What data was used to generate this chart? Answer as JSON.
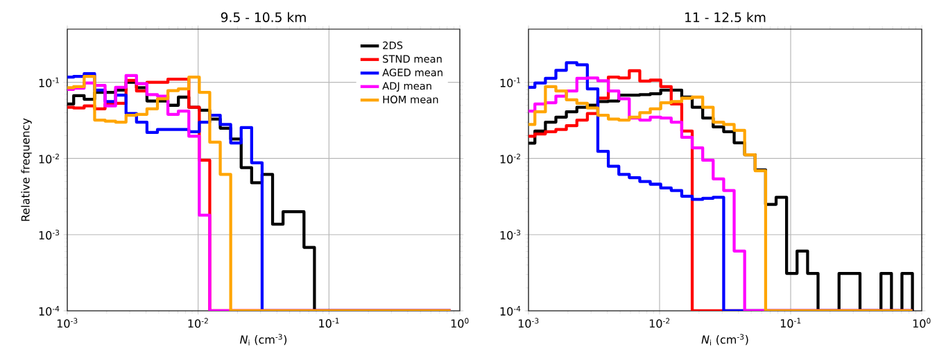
{
  "chart_data": [
    {
      "type": "histogram",
      "title": "9.5 - 10.5 km",
      "xlabel": "*N*$_{i}$ (cm$^{-3}$)",
      "ylabel": "Relative frequency",
      "log": "xy",
      "grid": true,
      "legend": "top right",
      "xlim": [
        0.001,
        1
      ],
      "ylim": [
        0.0001,
        0.5
      ],
      "xticks": [
        {
          "value": 0.001,
          "label": "10$^{-3}$"
        },
        {
          "value": 0.01,
          "label": "10$^{-2}$"
        },
        {
          "value": 0.1,
          "label": "10$^{-1}$"
        },
        {
          "value": 1,
          "label": "10$^{0}$"
        }
      ],
      "yticks": [
        {
          "value": 0.0001,
          "label": "10$^{-4}$"
        },
        {
          "value": 0.001,
          "label": "10$^{-3}$"
        },
        {
          "value": 0.01,
          "label": "10$^{-2}$"
        },
        {
          "value": 0.1,
          "label": "10$^{-1}$"
        }
      ],
      "bins": [
        0.001,
        0.001119,
        0.001346,
        0.001618,
        0.001945,
        0.002339,
        0.002812,
        0.003381,
        0.004064,
        0.004887,
        0.005875,
        0.007063,
        0.008492,
        0.01021,
        0.01227,
        0.01476,
        0.01774,
        0.02133,
        0.02564,
        0.03083,
        0.03707,
        0.04457,
        0.05358,
        0.06442,
        0.07745,
        0.09311,
        0.1119,
        0.1346,
        0.1618,
        0.1945,
        0.2339,
        0.2812,
        0.3381,
        0.4064,
        0.4887,
        0.5875,
        0.7063,
        0.8492
      ],
      "series": [
        {
          "name": "2DS",
          "color": "#000000",
          "values": [
            0.052,
            0.067,
            0.06,
            0.074,
            0.074,
            0.079,
            0.1,
            0.085,
            0.057,
            0.057,
            0.05,
            0.064,
            0.047,
            0.043,
            0.033,
            0.025,
            0.018,
            0.0076,
            0.0048,
            0.0062,
            0.00137,
            0.002,
            0.002,
            0.00068,
            null,
            null,
            null,
            null,
            null,
            null,
            null,
            null,
            null,
            null,
            null,
            null,
            null
          ]
        },
        {
          "name": "STND mean",
          "color": "#ff0000",
          "values": [
            0.047,
            0.046,
            0.049,
            0.045,
            0.052,
            0.053,
            0.106,
            0.077,
            0.1,
            0.1,
            0.11,
            0.11,
            0.047,
            0.0095,
            null,
            null,
            null,
            null,
            null,
            null,
            null,
            null,
            null,
            null,
            null,
            null,
            null,
            null,
            null,
            null,
            null,
            null,
            null,
            null,
            null,
            null,
            null
          ]
        },
        {
          "name": "AGED mean",
          "color": "#0000ff",
          "values": [
            0.117,
            0.12,
            0.13,
            0.079,
            0.056,
            0.068,
            0.039,
            0.03,
            0.022,
            0.024,
            0.024,
            0.024,
            0.0225,
            0.03,
            0.037,
            0.028,
            0.016,
            0.0255,
            0.0088,
            null,
            null,
            null,
            null,
            null,
            null,
            null,
            null,
            null,
            null,
            null,
            null,
            null,
            null,
            null,
            null,
            null,
            null
          ]
        },
        {
          "name": "ADJ mean",
          "color": "#ff00ff",
          "values": [
            0.081,
            0.084,
            0.098,
            0.091,
            0.049,
            0.086,
            0.123,
            0.096,
            0.069,
            0.066,
            0.038,
            0.042,
            0.0196,
            0.0018,
            null,
            null,
            null,
            null,
            null,
            null,
            null,
            null,
            null,
            null,
            null,
            null,
            null,
            null,
            null,
            null,
            null,
            null,
            null,
            null,
            null,
            null,
            null
          ]
        },
        {
          "name": "HOM mean",
          "color": "#ffa500",
          "values": [
            0.085,
            0.088,
            0.12,
            0.032,
            0.031,
            0.03,
            0.037,
            0.038,
            0.045,
            0.061,
            0.078,
            0.082,
            0.117,
            0.074,
            0.0164,
            0.0062,
            null,
            null,
            null,
            null,
            null,
            null,
            null,
            null,
            null,
            null,
            null,
            null,
            null,
            null,
            null,
            null,
            null,
            null,
            null,
            null,
            null
          ]
        }
      ]
    },
    {
      "type": "histogram",
      "title": "11 - 12.5 km",
      "xlabel": "*N*$_{i}$ (cm$^{-3}$)",
      "log": "xy",
      "grid": true,
      "xlim": [
        0.001,
        1
      ],
      "ylim": [
        0.0001,
        0.5
      ],
      "xticks": [
        {
          "value": 0.001,
          "label": "10$^{-3}$"
        },
        {
          "value": 0.01,
          "label": "10$^{-2}$"
        },
        {
          "value": 0.1,
          "label": "10$^{-1}$"
        },
        {
          "value": 1,
          "label": "10$^{0}$"
        }
      ],
      "yticks": [
        {
          "value": 0.0001,
          "label": "10$^{-4}$"
        },
        {
          "value": 0.001,
          "label": "10$^{-3}$"
        },
        {
          "value": 0.01,
          "label": "10$^{-2}$"
        },
        {
          "value": 0.1,
          "label": "10$^{-1}$"
        }
      ],
      "bins": [
        0.001,
        0.001119,
        0.001346,
        0.001618,
        0.001945,
        0.002339,
        0.002812,
        0.003381,
        0.004064,
        0.004887,
        0.005875,
        0.007063,
        0.008492,
        0.01021,
        0.01227,
        0.01476,
        0.01774,
        0.02133,
        0.02564,
        0.03083,
        0.03707,
        0.04457,
        0.05358,
        0.06442,
        0.07745,
        0.09311,
        0.1119,
        0.1346,
        0.1618,
        0.1945,
        0.2339,
        0.2812,
        0.3381,
        0.4064,
        0.4887,
        0.5875,
        0.7063,
        0.8492
      ],
      "series": [
        {
          "color": "#000000",
          "values": [
            0.0159,
            0.023,
            0.03,
            0.035,
            0.041,
            0.047,
            0.05,
            0.056,
            0.057,
            0.068,
            0.068,
            0.069,
            0.071,
            0.079,
            0.079,
            0.064,
            0.047,
            0.034,
            0.026,
            0.0225,
            0.0161,
            0.0112,
            0.0071,
            0.0025,
            0.0031,
            0.00031,
            0.00061,
            0.00031,
            null,
            null,
            0.00031,
            0.00031,
            null,
            null,
            0.00031,
            null,
            0.00031
          ]
        },
        {
          "color": "#ff0000",
          "values": [
            0.0196,
            0.021,
            0.0225,
            0.024,
            0.027,
            0.032,
            0.039,
            0.062,
            0.117,
            0.114,
            0.142,
            0.104,
            0.107,
            0.088,
            0.052,
            0.023,
            null,
            null,
            null,
            null,
            null,
            null,
            null,
            null,
            null,
            null,
            null,
            null,
            null,
            null,
            null,
            null,
            null,
            null,
            null,
            null,
            null
          ]
        },
        {
          "color": "#0000ff",
          "values": [
            0.086,
            0.098,
            0.113,
            0.144,
            0.181,
            0.17,
            0.082,
            0.0124,
            0.0079,
            0.0062,
            0.0056,
            0.005,
            0.0046,
            0.0041,
            0.0038,
            0.0032,
            0.0029,
            0.003,
            0.0031,
            null,
            null,
            null,
            null,
            null,
            null,
            null,
            null,
            null,
            null,
            null,
            null,
            null,
            null,
            null,
            null,
            null,
            null
          ]
        },
        {
          "color": "#ff00ff",
          "values": [
            0.042,
            0.052,
            0.054,
            0.066,
            0.077,
            0.113,
            0.114,
            0.105,
            0.077,
            0.061,
            0.034,
            0.032,
            0.035,
            0.034,
            0.03,
            0.019,
            0.0138,
            0.0095,
            0.0054,
            0.0038,
            0.00061,
            null,
            null,
            null,
            null,
            null,
            null,
            null,
            null,
            null,
            null,
            null,
            null,
            null,
            null,
            null,
            null
          ]
        },
        {
          "color": "#ffa500",
          "values": [
            0.028,
            0.041,
            0.088,
            0.077,
            0.059,
            0.053,
            0.046,
            0.037,
            0.033,
            0.032,
            0.035,
            0.04,
            0.045,
            0.054,
            0.056,
            0.062,
            0.064,
            0.047,
            0.03,
            0.028,
            0.0234,
            0.0112,
            0.0069,
            null,
            null,
            null,
            null,
            null,
            null,
            null,
            null,
            null,
            null,
            null,
            null,
            null,
            null
          ]
        }
      ]
    }
  ]
}
